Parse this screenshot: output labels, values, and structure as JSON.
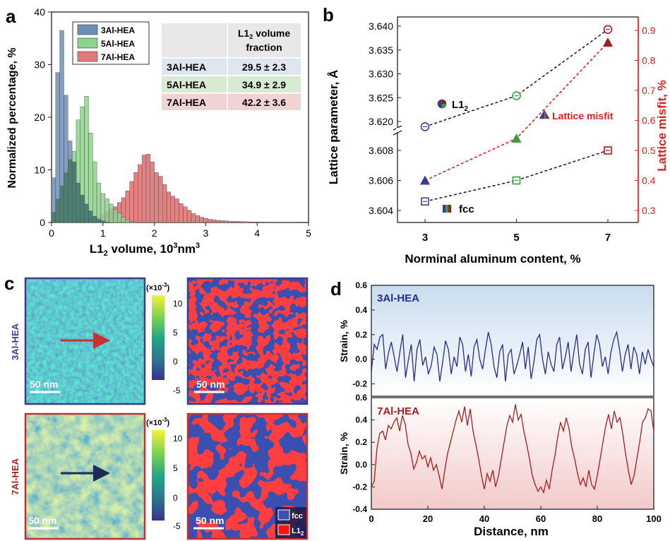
{
  "chart_data": [
    {
      "panel": "a",
      "type": "bar",
      "xlabel_main": "L1",
      "xlabel_sub": "2",
      "xlabel_rest": " volume, 10",
      "xlabel_sup": "3",
      "xlabel_tail": "nm",
      "xlabel_sup2": "3",
      "ylabel": "Normalized percentage, %",
      "xlim": [
        0,
        5
      ],
      "ylim": [
        0,
        40
      ],
      "xticks": [
        "0",
        "1",
        "2",
        "3",
        "4",
        "5"
      ],
      "yticks": [
        "0",
        "10",
        "20",
        "30",
        "40"
      ],
      "bin_width": 0.08,
      "series": [
        {
          "name": "3Al-HEA",
          "color": "#6b8fb8",
          "start": 0.0,
          "values": [
            8.5,
            28.5,
            36.5,
            24.2,
            15.5,
            11.5,
            7.5,
            5.2,
            3.5,
            2.2,
            1.2,
            0.6,
            0.3,
            0.1
          ]
        },
        {
          "name": "5Al-HEA",
          "color": "#8fd18f",
          "start": 0.0,
          "values": [
            2.0,
            4.5,
            7.0,
            9.5,
            12.0,
            13.5,
            19.5,
            22.0,
            24.0,
            17.0,
            11.5,
            7.5,
            5.5,
            4.5,
            3.5,
            2.5,
            1.8,
            1.0,
            0.5,
            0.2
          ]
        },
        {
          "name": "7Al-HEA",
          "color": "#e07b7b",
          "start": 0.0,
          "values": [
            0.1,
            0.2,
            0.3,
            0.4,
            0.6,
            0.8,
            1.0,
            1.2,
            1.0,
            0.9,
            0.9,
            1.0,
            1.4,
            2.0,
            2.6,
            3.0,
            3.8,
            4.7,
            6.0,
            7.8,
            9.5,
            11.0,
            12.8,
            13.0,
            11.5,
            9.5,
            8.8,
            7.2,
            5.8,
            5.0,
            4.5,
            3.6,
            3.0,
            2.3,
            1.7,
            1.3,
            1.0,
            0.8,
            0.6,
            0.5,
            0.4,
            0.35,
            0.3,
            0.25,
            0.2,
            0.2,
            0.15,
            0.15,
            0.1,
            0.1,
            0.1,
            0.08,
            0.05,
            0.05,
            0.05,
            0.05,
            0.03,
            0.03,
            0.02
          ]
        }
      ],
      "table": {
        "header_line1": "L1",
        "header_sub": "2",
        "header_rest": " volume",
        "header_line2": "fraction",
        "rows": [
          {
            "label": "3Al-HEA",
            "value": "29.5 ± 2.3",
            "color": "#dfe6ef"
          },
          {
            "label": "5Al-HEA",
            "value": "34.9 ± 2.9",
            "color": "#d7ebd3"
          },
          {
            "label": "7Al-HEA",
            "value": "42.2 ± 3.6",
            "color": "#f1d3d3"
          }
        ]
      }
    },
    {
      "panel": "b",
      "type": "scatter",
      "xlabel": "Norminal aluminum content, %",
      "ylabel_left": "Lattice parameter, Å",
      "ylabel_right": "Lattice misfit, %",
      "xticks": [
        "3",
        "5",
        "7"
      ],
      "x": [
        3,
        5,
        7
      ],
      "yticks_upper": [
        "3.620",
        "3.625",
        "3.630",
        "3.635",
        "3.640"
      ],
      "yticks_lower": [
        "3.604",
        "3.606",
        "3.608"
      ],
      "yticks_right": [
        "0.3",
        "0.4",
        "0.5",
        "0.6",
        "0.7",
        "0.8",
        "0.9"
      ],
      "upper_ylim": [
        3.6165,
        3.641
      ],
      "lower_ylim": [
        3.6032,
        3.6085
      ],
      "right_ylim": [
        0.25,
        0.935
      ],
      "L12": [
        3.6189,
        3.6254,
        3.6393
      ],
      "fcc": [
        3.6046,
        3.606,
        3.608
      ],
      "misfit": [
        0.4,
        0.54,
        0.86
      ],
      "legend_L12": "L1",
      "legend_L12_sub": "2",
      "legend_fcc": "fcc",
      "legend_misfit": "Lattice misfit",
      "colors": {
        "c3": "#3d3d8f",
        "c5": "#3f9b3f",
        "c7": "#9b1f1f",
        "misfit_line": "#e02020"
      }
    },
    {
      "panel": "c",
      "type": "heatmap",
      "rows": [
        {
          "label": "3Al-HEA",
          "label_color": "#3d3d8f",
          "border": "#3d3d8f",
          "arrow_color": "#c83232",
          "scale": "50 nm"
        },
        {
          "label": "7Al-HEA",
          "label_color": "#b02020",
          "border": "#c03030",
          "arrow_color": "#1d2b55",
          "scale": "50 nm"
        }
      ],
      "colorbar_title": "(×10",
      "colorbar_exp": "-3",
      "colorbar_close": ")",
      "colorbar_ticks": [
        "10",
        "5",
        "0",
        "-5"
      ],
      "legend_fcc": "fcc",
      "legend_L12": "L1",
      "legend_L12_sub": "2"
    },
    {
      "panel": "d",
      "type": "line",
      "xlabel": "Distance, nm",
      "ylabel": "Strain, %",
      "xlim": [
        0,
        100
      ],
      "xticks": [
        "0",
        "20",
        "40",
        "60",
        "80",
        "100"
      ],
      "top": {
        "name": "3Al-HEA",
        "color": "#2a2a8f",
        "ylim": [
          -0.3,
          0.6
        ],
        "yticks": [
          "-0.2",
          "0.0",
          "0.2",
          "0.4",
          "0.6"
        ],
        "y": [
          -0.1,
          0.12,
          0.08,
          0.18,
          0.2,
          -0.08,
          0.05,
          0.14,
          0.02,
          -0.1,
          0.06,
          0.2,
          -0.15,
          0.0,
          0.12,
          -0.18,
          0.08,
          0.16,
          -0.05,
          0.02,
          -0.12,
          -0.05,
          0.1,
          0.04,
          -0.18,
          -0.02,
          0.15,
          0.08,
          -0.12,
          0.02,
          -0.06,
          0.18,
          0.12,
          -0.1,
          0.04,
          -0.14,
          0.1,
          0.16,
          0.0,
          -0.08,
          0.08,
          0.22,
          0.12,
          -0.06,
          -0.15,
          0.06,
          0.12,
          -0.18,
          0.04,
          0.08,
          -0.12,
          -0.05,
          0.04,
          0.14,
          -0.08,
          0.1,
          -0.16,
          -0.02,
          0.16,
          0.2,
          0.0,
          -0.12,
          0.06,
          -0.04,
          -0.1,
          0.12,
          0.18,
          -0.08,
          0.02,
          0.14,
          -0.1,
          0.06,
          0.2,
          -0.04,
          -0.12,
          0.08,
          0.14,
          -0.15,
          0.04,
          0.2,
          0.12,
          -0.06,
          0.02,
          -0.12,
          0.06,
          0.16,
          0.22,
          0.08,
          -0.1,
          0.04,
          0.12,
          -0.08,
          0.1,
          0.04,
          -0.12,
          0.06,
          -0.04,
          0.08,
          0.0,
          -0.06
        ]
      },
      "bottom": {
        "name": "7Al-HEA",
        "color": "#a02020",
        "ylim": [
          -0.4,
          0.6
        ],
        "yticks": [
          "-0.4",
          "-0.2",
          "0.0",
          "0.2",
          "0.4",
          "0.6"
        ],
        "y": [
          -0.2,
          -0.15,
          0.15,
          0.28,
          0.3,
          0.22,
          0.35,
          0.32,
          0.38,
          0.42,
          0.3,
          0.44,
          0.36,
          0.18,
          0.1,
          -0.04,
          0.02,
          0.12,
          0.05,
          0.08,
          -0.02,
          0.06,
          -0.05,
          0.0,
          -0.1,
          -0.22,
          -0.05,
          0.1,
          0.2,
          0.3,
          0.4,
          0.48,
          0.38,
          0.52,
          0.35,
          0.5,
          0.3,
          0.18,
          0.05,
          -0.1,
          -0.22,
          -0.08,
          -0.15,
          -0.05,
          -0.2,
          -0.1,
          0.05,
          0.2,
          0.35,
          0.44,
          0.38,
          0.54,
          0.4,
          0.45,
          0.3,
          0.18,
          0.05,
          -0.1,
          -0.18,
          -0.24,
          -0.2,
          -0.25,
          -0.14,
          -0.22,
          -0.05,
          0.08,
          0.25,
          0.38,
          0.3,
          0.42,
          0.32,
          0.15,
          0.05,
          -0.08,
          -0.18,
          -0.12,
          -0.2,
          -0.05,
          -0.18,
          -0.22,
          -0.1,
          0.05,
          0.2,
          0.35,
          0.45,
          0.32,
          0.48,
          0.38,
          0.42,
          0.28,
          0.1,
          -0.05,
          -0.18,
          -0.1,
          0.05,
          0.2,
          0.38,
          0.42,
          0.5,
          0.48,
          0.3
        ]
      }
    }
  ],
  "panel_letters": [
    "a",
    "b",
    "c",
    "d"
  ]
}
